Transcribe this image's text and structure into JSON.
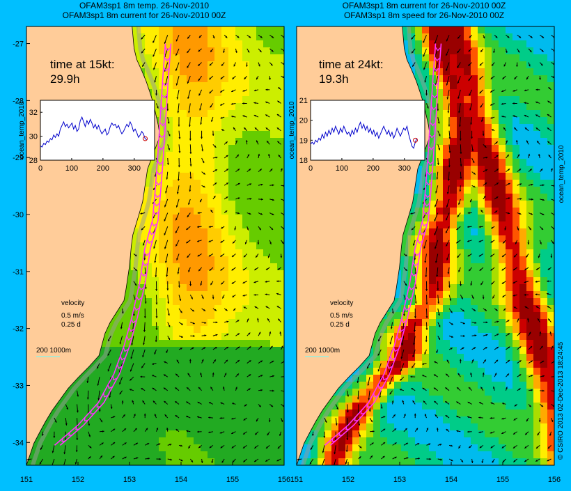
{
  "chart_data": [
    {
      "type": "heatmap",
      "title": "OFAM3sp1 8m temp. 26-Nov-2010",
      "subtitle": "OFAM3sp1 8m current for 26-Nov-2010 00Z",
      "time_label": "time at 15kt:",
      "time_value": "29.9h",
      "velocity_label": "velocity",
      "velocity_speed": "0.5 m/s",
      "velocity_time": "0.25 d",
      "depth_label": "200  1000m",
      "xlim": [
        151,
        156
      ],
      "ylim": [
        -34.4,
        -26.7
      ],
      "x_ticks": [
        "151",
        "152",
        "153",
        "154",
        "155",
        "156"
      ],
      "y_ticks": [
        "-27",
        "-28",
        "-29",
        "-30",
        "-31",
        "-32",
        "-33",
        "-34"
      ],
      "inset": {
        "x_ticks": [
          "0",
          "100",
          "200",
          "300"
        ],
        "y_ticks": [
          "32",
          "30",
          "28"
        ],
        "xlim": [
          0,
          365
        ],
        "ylim": [
          28,
          33
        ],
        "ylabel": "ocean_temp_2010",
        "series": [
          29.2,
          29.1,
          29.4,
          29.3,
          29.6,
          29.5,
          29.8,
          29.7,
          30.1,
          29.9,
          30.2,
          30.0,
          30.6,
          30.9,
          31.2,
          30.8,
          31.0,
          30.7,
          30.9,
          31.1,
          30.6,
          30.9,
          30.4,
          30.6,
          31.3,
          31.6,
          31.2,
          30.8,
          31.3,
          31.0,
          31.4,
          31.1,
          30.7,
          31.0,
          30.6,
          30.9,
          30.5,
          30.2,
          30.4,
          30.6,
          30.1,
          30.3,
          30.8,
          31.1,
          30.9,
          31.0,
          30.7,
          30.9,
          30.5,
          30.2,
          30.4,
          30.7,
          31.0,
          30.8,
          31.2,
          30.9,
          30.4,
          30.6,
          30.3,
          29.9,
          30.1,
          30.4,
          30.2,
          29.8,
          29.7
        ],
        "marker": [
          335,
          29.8
        ]
      }
    },
    {
      "type": "heatmap",
      "title": "OFAM3sp1 8m current for 26-Nov-2010 00Z",
      "subtitle": "OFAM3sp1 8m speed for 26-Nov-2010 00Z",
      "time_label": "time at 24kt:",
      "time_value": "19.3h",
      "velocity_label": "velocity",
      "velocity_speed": "0.5 m/s",
      "velocity_time": "0.25 d",
      "depth_label": "200  1000m",
      "xlim": [
        151,
        156
      ],
      "ylim": [
        -34.4,
        -26.7
      ],
      "x_ticks": [
        "151",
        "152",
        "153",
        "154",
        "155",
        "156"
      ],
      "y_ticks": [],
      "side_label": "ocean_temp_2010",
      "inset": {
        "x_ticks": [
          "0",
          "100",
          "200",
          "300"
        ],
        "y_ticks": [
          "21",
          "20",
          "19",
          "18"
        ],
        "xlim": [
          0,
          365
        ],
        "ylim": [
          18,
          21
        ],
        "ylabel": "ocean_temp_2010",
        "series": [
          18.8,
          18.9,
          18.8,
          19.0,
          18.9,
          19.1,
          19.0,
          19.3,
          19.1,
          19.4,
          19.2,
          19.5,
          19.3,
          19.6,
          19.4,
          19.7,
          19.5,
          19.3,
          19.6,
          19.4,
          19.7,
          19.5,
          19.3,
          19.4,
          19.2,
          19.5,
          19.3,
          19.6,
          19.4,
          19.7,
          19.9,
          19.6,
          19.8,
          19.5,
          19.7,
          19.4,
          19.6,
          19.3,
          19.5,
          19.2,
          19.4,
          19.1,
          19.3,
          19.5,
          19.7,
          19.5,
          19.3,
          19.5,
          19.2,
          19.4,
          19.1,
          19.3,
          19.6,
          19.4,
          19.2,
          19.4,
          19.6,
          19.5,
          19.7,
          19.3,
          19.0,
          18.7,
          18.6,
          18.9,
          19.1
        ],
        "marker": [
          335,
          19.0
        ]
      }
    }
  ],
  "copyright": "© CSIRO 2013   02-Dec-2013 18:24:45"
}
